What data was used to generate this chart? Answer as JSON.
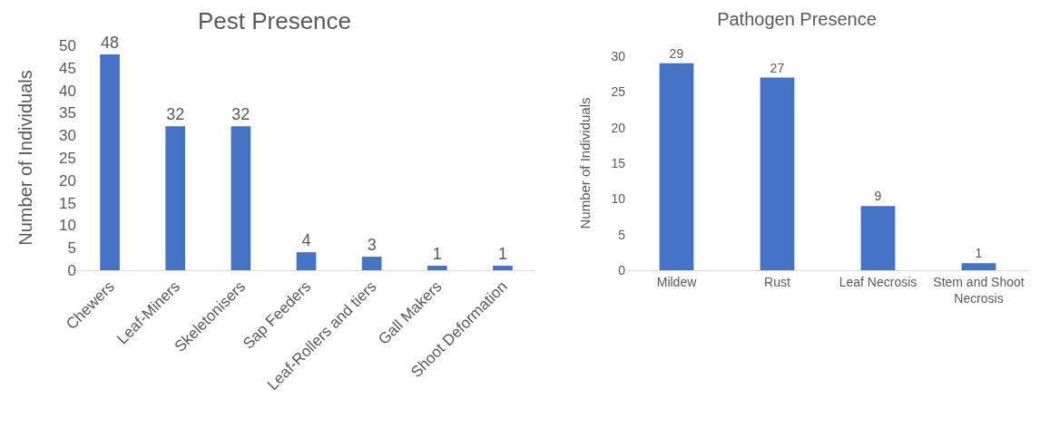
{
  "chart_data": [
    {
      "type": "bar",
      "title": "Pest Presence",
      "ylabel": "Number of Individuals",
      "categories": [
        "Chewers",
        "Leaf-Miners",
        "Skeletonisers",
        "Sap Feeders",
        "Leaf-Rollers and tiers",
        "Gall Makers",
        "Shoot Deformation"
      ],
      "values": [
        48,
        32,
        32,
        4,
        3,
        1,
        1
      ],
      "color": "#4472c4",
      "ylim": [
        0,
        50
      ],
      "yticks": [
        0,
        5,
        10,
        15,
        20,
        25,
        30,
        35,
        40,
        45,
        50
      ],
      "data_labels": true
    },
    {
      "type": "bar",
      "title": "Pathogen Presence",
      "ylabel": "Number of Individuals",
      "categories": [
        "Mildew",
        "Rust",
        "Leaf Necrosis",
        "Stem and Shoot Necrosis"
      ],
      "values": [
        29,
        27,
        9,
        1
      ],
      "color": "#4472c4",
      "ylim": [
        0,
        30
      ],
      "yticks": [
        0,
        5,
        10,
        15,
        20,
        25,
        30
      ],
      "data_labels": true
    }
  ]
}
